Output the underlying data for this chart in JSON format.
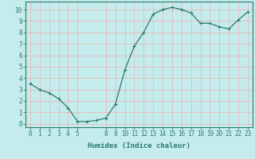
{
  "x": [
    0,
    1,
    2,
    3,
    4,
    5,
    6,
    7,
    8,
    9,
    10,
    11,
    12,
    13,
    14,
    15,
    16,
    17,
    18,
    19,
    20,
    21,
    22,
    23
  ],
  "y": [
    3.5,
    3.0,
    2.7,
    2.2,
    1.4,
    0.2,
    0.2,
    0.3,
    0.5,
    1.7,
    4.7,
    6.8,
    8.0,
    9.6,
    10.0,
    10.2,
    10.0,
    9.7,
    8.8,
    8.8,
    8.5,
    8.3,
    9.1,
    9.8
  ],
  "xlabel": "Humidex (Indice chaleur)",
  "xticks": [
    0,
    1,
    2,
    3,
    4,
    5,
    8,
    9,
    10,
    11,
    12,
    13,
    14,
    15,
    16,
    17,
    18,
    19,
    20,
    21,
    22,
    23
  ],
  "yticks": [
    0,
    1,
    2,
    3,
    4,
    5,
    6,
    7,
    8,
    9,
    10
  ],
  "ylim": [
    -0.3,
    10.7
  ],
  "xlim": [
    -0.5,
    23.5
  ],
  "line_color": "#2a7b6d",
  "marker_color": "#2a7b6d",
  "bg_color": "#c5ecec",
  "grid_color": "#e8b8b8",
  "axis_color": "#2a7b6d",
  "label_color": "#2a7b6d",
  "tick_fontsize": 5.5,
  "xlabel_fontsize": 6.5
}
